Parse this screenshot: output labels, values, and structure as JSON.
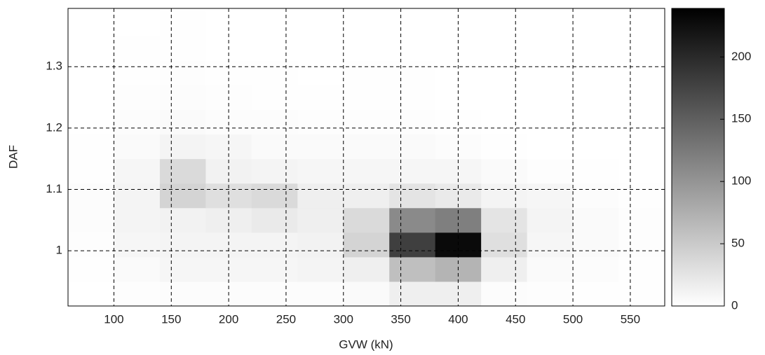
{
  "chart_data": {
    "type": "heatmap",
    "xlabel": "GVW (kN)",
    "ylabel": "DAF",
    "x": [
      80,
      120,
      160,
      200,
      240,
      280,
      320,
      360,
      400,
      440,
      480,
      520,
      560
    ],
    "y": [
      0.93,
      0.97,
      1.01,
      1.05,
      1.09,
      1.13,
      1.17,
      1.21,
      1.25,
      1.29,
      1.33,
      1.37
    ],
    "z": [
      [
        0,
        2,
        3,
        3,
        3,
        3,
        5,
        15,
        15,
        3,
        2,
        1,
        1
      ],
      [
        1,
        5,
        8,
        8,
        8,
        10,
        15,
        60,
        70,
        15,
        5,
        3,
        1
      ],
      [
        2,
        8,
        10,
        10,
        10,
        12,
        40,
        180,
        230,
        30,
        8,
        5,
        2
      ],
      [
        3,
        10,
        12,
        15,
        20,
        15,
        35,
        110,
        120,
        25,
        10,
        5,
        2
      ],
      [
        3,
        10,
        40,
        30,
        35,
        15,
        15,
        25,
        20,
        10,
        8,
        3,
        1
      ],
      [
        1,
        8,
        35,
        12,
        10,
        8,
        8,
        8,
        8,
        5,
        2,
        1,
        0
      ],
      [
        1,
        5,
        10,
        8,
        5,
        5,
        5,
        5,
        3,
        1,
        0,
        0,
        0
      ],
      [
        0,
        3,
        5,
        3,
        3,
        2,
        2,
        2,
        1,
        0,
        0,
        0,
        0
      ],
      [
        0,
        2,
        3,
        2,
        1,
        1,
        1,
        1,
        0,
        0,
        0,
        0,
        0
      ],
      [
        0,
        1,
        2,
        1,
        1,
        0,
        1,
        1,
        0,
        0,
        0,
        0,
        0
      ],
      [
        0,
        1,
        1,
        0,
        0,
        0,
        0,
        0,
        0,
        0,
        0,
        0,
        0
      ],
      [
        0,
        0,
        1,
        0,
        0,
        0,
        0,
        0,
        0,
        0,
        0,
        0,
        0
      ]
    ],
    "xlim": [
      60,
      580
    ],
    "ylim": [
      0.91,
      1.395
    ],
    "xticks": [
      100,
      150,
      200,
      250,
      300,
      350,
      400,
      450,
      500,
      550
    ],
    "yticks": [
      1,
      1.1,
      1.2,
      1.3
    ],
    "grid": true,
    "colors": [
      "#ffffff",
      "#000000"
    ],
    "colorbar": {
      "lim": [
        0,
        239
      ],
      "ticks": [
        0,
        50,
        100,
        150,
        200
      ]
    }
  }
}
